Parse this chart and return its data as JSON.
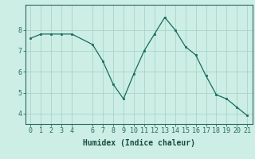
{
  "x": [
    0,
    1,
    2,
    3,
    4,
    6,
    7,
    8,
    9,
    10,
    11,
    12,
    13,
    14,
    15,
    16,
    17,
    18,
    19,
    20,
    21
  ],
  "y": [
    7.6,
    7.8,
    7.8,
    7.8,
    7.8,
    7.3,
    6.5,
    5.4,
    4.7,
    5.9,
    7.0,
    7.8,
    8.6,
    8.0,
    7.2,
    6.8,
    5.8,
    4.9,
    4.7,
    4.3,
    3.9
  ],
  "line_color": "#1a6b5e",
  "marker_color": "#1a6b5e",
  "bg_color": "#cceee4",
  "grid_color": "#aad4c8",
  "xlabel": "Humidex (Indice chaleur)",
  "xlim": [
    -0.5,
    21.5
  ],
  "ylim": [
    3.5,
    9.2
  ],
  "yticks": [
    4,
    5,
    6,
    7,
    8
  ],
  "xticks": [
    0,
    1,
    2,
    3,
    4,
    6,
    7,
    8,
    9,
    10,
    11,
    12,
    13,
    14,
    15,
    16,
    17,
    18,
    19,
    20,
    21
  ],
  "tick_color": "#2d6b5e",
  "font_color": "#1a4a3e",
  "font_size": 6,
  "xlabel_fontsize": 7
}
